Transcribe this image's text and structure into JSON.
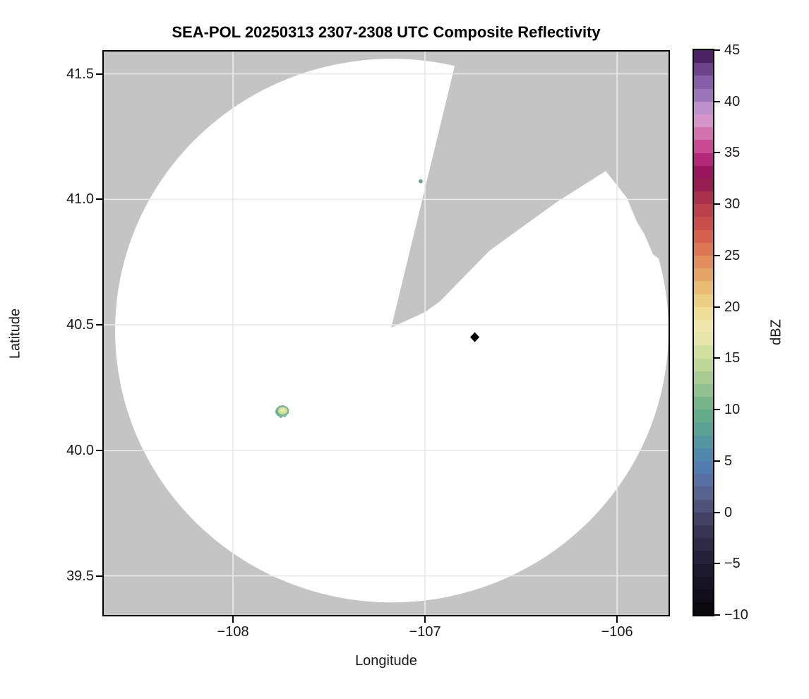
{
  "title": "SEA-POL 20250313 2307-2308 UTC Composite Reflectivity",
  "axes": {
    "xlabel": "Longitude",
    "ylabel": "Latitude",
    "xlim": [
      -108.673,
      -105.732
    ],
    "ylim": [
      39.344,
      41.589
    ],
    "x_ticks": [
      {
        "value": -108,
        "label": "−108"
      },
      {
        "value": -107,
        "label": "−107"
      },
      {
        "value": -106,
        "label": "−106"
      }
    ],
    "y_ticks": [
      {
        "value": 41.5,
        "label": "41.5"
      },
      {
        "value": 41.0,
        "label": "41.0"
      },
      {
        "value": 40.5,
        "label": "40.5"
      },
      {
        "value": 40.0,
        "label": "40.0"
      },
      {
        "value": 39.5,
        "label": "39.5"
      }
    ]
  },
  "colorbar": {
    "label": "dBZ",
    "min": -10,
    "max": 45,
    "band_size": 1.25,
    "ticks": [
      {
        "value": 45,
        "label": "45"
      },
      {
        "value": 40,
        "label": "40"
      },
      {
        "value": 35,
        "label": "35"
      },
      {
        "value": 30,
        "label": "30"
      },
      {
        "value": 25,
        "label": "25"
      },
      {
        "value": 20,
        "label": "20"
      },
      {
        "value": 15,
        "label": "15"
      },
      {
        "value": 10,
        "label": "10"
      },
      {
        "value": 5,
        "label": "5"
      },
      {
        "value": 0,
        "label": "0"
      },
      {
        "value": -5,
        "label": "−5"
      },
      {
        "value": -10,
        "label": "−10"
      }
    ],
    "stops": [
      [
        -10,
        "#060308"
      ],
      [
        -8.75,
        "#0d0a14"
      ],
      [
        -7.5,
        "#14101f"
      ],
      [
        -6.25,
        "#1a1629"
      ],
      [
        -5,
        "#221d33"
      ],
      [
        -3.75,
        "#2a2540"
      ],
      [
        -2.5,
        "#332e4c"
      ],
      [
        -1.25,
        "#3d3a5c"
      ],
      [
        0,
        "#484a70"
      ],
      [
        1.25,
        "#535b85"
      ],
      [
        2.5,
        "#58699b"
      ],
      [
        3.75,
        "#5376ab"
      ],
      [
        5,
        "#4c82b2"
      ],
      [
        6.25,
        "#4f8fa8"
      ],
      [
        7.5,
        "#569c9b"
      ],
      [
        8.75,
        "#5da78e"
      ],
      [
        10,
        "#69af86"
      ],
      [
        11.25,
        "#83bb8c"
      ],
      [
        12.5,
        "#9cc791"
      ],
      [
        15,
        "#c8dc98"
      ],
      [
        17.5,
        "#eeeab0"
      ],
      [
        18.75,
        "#f0e4a2"
      ],
      [
        20,
        "#edd78d"
      ],
      [
        21.25,
        "#eac47b"
      ],
      [
        22.5,
        "#e6b069"
      ],
      [
        25,
        "#df8157"
      ],
      [
        26.25,
        "#d96b50"
      ],
      [
        27.5,
        "#cf5449"
      ],
      [
        30,
        "#b5394a"
      ],
      [
        31.25,
        "#9e264e"
      ],
      [
        32.5,
        "#8c1452"
      ],
      [
        33.75,
        "#a5186b"
      ],
      [
        35,
        "#c43587"
      ],
      [
        36.25,
        "#cf5d9f"
      ],
      [
        37.5,
        "#d986bd"
      ],
      [
        38.75,
        "#d3a3d6"
      ],
      [
        40,
        "#a87fc2"
      ],
      [
        41.25,
        "#9068b1"
      ],
      [
        42.5,
        "#7b529e"
      ],
      [
        43.75,
        "#5c3376"
      ],
      [
        45,
        "#3a1253"
      ]
    ]
  },
  "chart_data": {
    "type": "radar_composite_reflectivity_ppi",
    "radar": {
      "name": "SEA-POL",
      "lon": -107.176,
      "lat": 40.489
    },
    "coverage": {
      "center_lon": -107.173,
      "center_lat": 40.477,
      "radius_lon_deg": 1.441,
      "radius_lat_deg": 1.083
    },
    "blocked_sectors": [
      {
        "polygon": [
          [
            -107.176,
            40.489
          ],
          [
            -106.824,
            41.6
          ],
          [
            -105.7,
            41.6
          ],
          [
            -105.713,
            41.333
          ],
          [
            -106.059,
            41.113
          ],
          [
            -106.309,
            40.992
          ],
          [
            -106.665,
            40.795
          ],
          [
            -106.923,
            40.593
          ],
          [
            -107.0,
            40.551
          ]
        ]
      },
      {
        "polygon": [
          [
            -106.059,
            41.113
          ],
          [
            -105.949,
            41.006
          ],
          [
            -105.897,
            40.911
          ],
          [
            -105.857,
            40.86
          ],
          [
            -105.813,
            40.781
          ],
          [
            -105.703,
            40.72
          ],
          [
            -105.713,
            41.333
          ]
        ]
      }
    ],
    "echoes": [
      {
        "kind": "cell",
        "lon": -107.023,
        "lat": 41.072,
        "dbz_max": 9,
        "size_lon_deg": 0.021,
        "size_lat_deg": 0.017,
        "layers": [
          {
            "dbz": 8,
            "color": "#6aab8e"
          },
          {
            "dbz": 9,
            "color": "#58a096"
          }
        ]
      },
      {
        "kind": "marker",
        "shape": "diamond",
        "lon": -106.741,
        "lat": 40.451,
        "color": "#000000",
        "dbz": -10
      },
      {
        "kind": "cell",
        "lon": -107.743,
        "lat": 40.155,
        "dbz_max": 17,
        "size_lon_deg": 0.077,
        "size_lat_deg": 0.048,
        "layers": [
          {
            "dbz": 10,
            "color": "#74b295"
          },
          {
            "dbz": 14,
            "color": "#cbe09b"
          },
          {
            "dbz": 17,
            "color": "#ece9a6"
          }
        ]
      }
    ]
  },
  "colors": {
    "background": "#c4c4c4",
    "coverage": "#ffffff",
    "grid": "#e9e9e9",
    "spine": "#000000"
  }
}
